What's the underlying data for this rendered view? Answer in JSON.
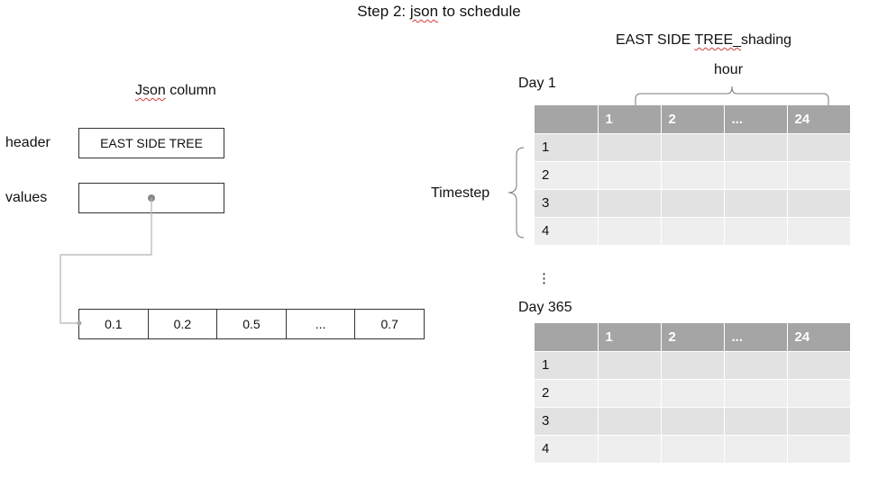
{
  "title_prefix": "Step 2: ",
  "title_word": "json",
  "title_suffix": " to schedule",
  "left": {
    "json_word": "Json",
    "json_rest": " column",
    "header_label": "header",
    "values_label": "values",
    "header_value": "EAST SIDE TREE",
    "array": [
      "0.1",
      "0.2",
      "0.5",
      "...",
      "0.7"
    ]
  },
  "right": {
    "schedule_pre": "EAST SIDE ",
    "schedule_word": "TREE_",
    "schedule_post": "shading",
    "hour_label": "hour",
    "timestep_label": "Timestep",
    "vdots": "⋮",
    "days": [
      {
        "label": "Day 1",
        "header": [
          "",
          "1",
          "2",
          "...",
          "24"
        ],
        "rows": [
          "1",
          "2",
          "3",
          "4"
        ]
      },
      {
        "label": "Day 365",
        "header": [
          "",
          "1",
          "2",
          "...",
          "24"
        ],
        "rows": [
          "1",
          "2",
          "3",
          "4"
        ]
      }
    ]
  }
}
